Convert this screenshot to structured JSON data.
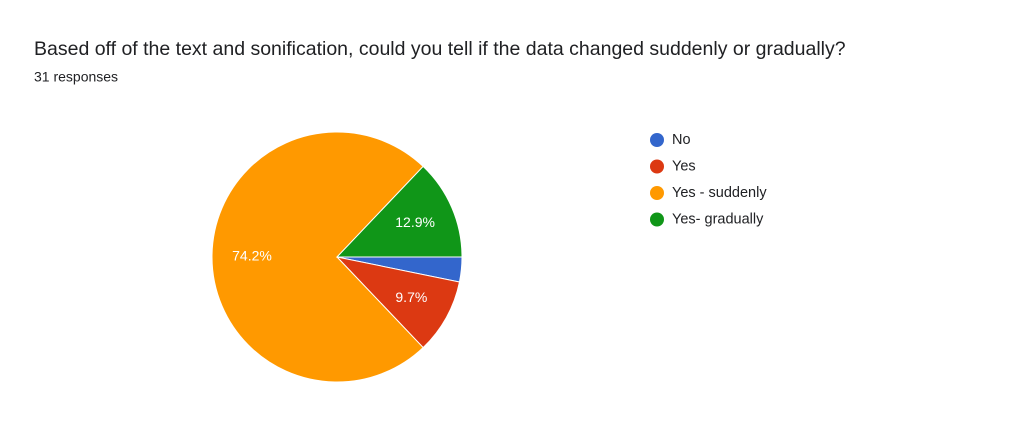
{
  "chart_data": {
    "type": "pie",
    "title": "Based off of the text and sonification, could you tell if the data changed suddenly or gradually?",
    "subtitle": "31 responses",
    "categories": [
      "No",
      "Yes",
      "Yes - suddenly",
      "Yes- gradually"
    ],
    "values": [
      3.2,
      9.7,
      74.2,
      12.9
    ],
    "value_labels": [
      null,
      "9.7%",
      "74.2%",
      "12.9%"
    ],
    "colors": [
      "#3366cc",
      "#dc3912",
      "#ff9900",
      "#109618"
    ]
  }
}
